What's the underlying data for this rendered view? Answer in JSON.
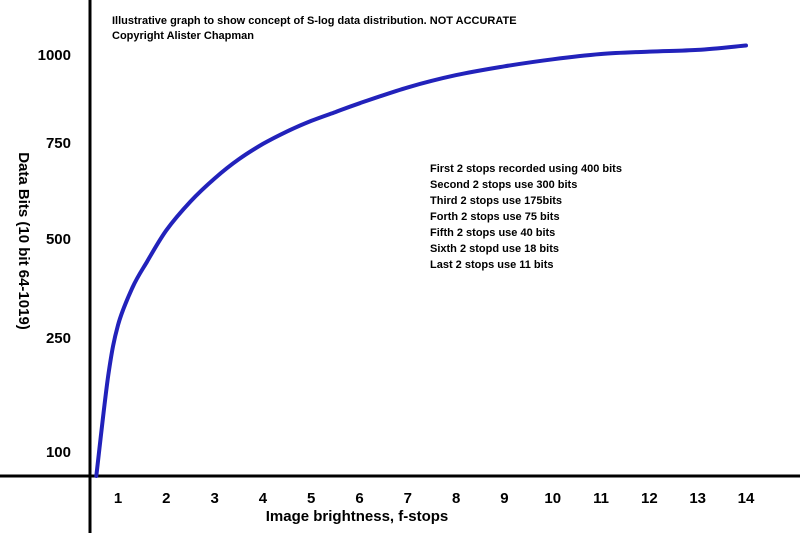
{
  "chart_data": {
    "type": "line",
    "title": "Illustrative graph to show concept of S-log data distribution. NOT ACCURATE",
    "subtitle": "Copyright Alister Chapman",
    "xlabel": "Image brightness, f-stops",
    "ylabel": "Data Bits (10 bit 64-1019)",
    "x_ticks": [
      1,
      2,
      3,
      4,
      5,
      6,
      7,
      8,
      9,
      10,
      11,
      12,
      13,
      14
    ],
    "y_ticks": [
      100,
      250,
      500,
      750,
      1000
    ],
    "xlim": [
      0.4,
      14.4
    ],
    "grid": false,
    "series": [
      {
        "color": "#2222bb",
        "x": [
          0.55,
          0.8,
          1.0,
          1.3,
          1.6,
          2.0,
          2.5,
          3.0,
          3.5,
          4.0,
          4.5,
          5.0,
          5.5,
          6.0,
          7.0,
          8.0,
          9.0,
          10.0,
          11.0,
          12.0,
          13.0,
          14.0
        ],
        "y": [
          70,
          200,
          280,
          375,
          440,
          520,
          595,
          655,
          705,
          745,
          780,
          810,
          835,
          860,
          905,
          940,
          965,
          985,
          1000,
          1007,
          1012,
          1025
        ]
      }
    ],
    "annotations": [
      "First 2 stops recorded using 400 bits",
      "Second 2 stops use 300 bits",
      "Third 2 stops use 175bits",
      "Forth 2 stops use 75 bits",
      "Fifth 2 stops use 40 bits",
      "Sixth 2 stopd use 18 bits",
      "Last 2 stops use 11 bits"
    ]
  }
}
